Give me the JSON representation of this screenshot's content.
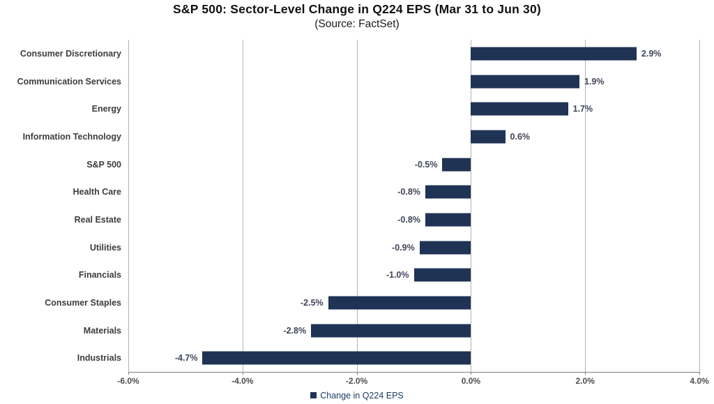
{
  "title": "S&P 500: Sector-Level Change in Q224 EPS (Mar 31 to Jun 30)",
  "subtitle": "(Source: FactSet)",
  "colors": {
    "bar": "#1f3355",
    "grid": "#b3b3b3",
    "axis": "#7f7f7f",
    "category_label": "#3d3d3d",
    "value_label": "#41445a",
    "legend_text": "#17375e"
  },
  "legend": {
    "label": "Change in Q224 EPS",
    "position": "bottom"
  },
  "chart_data": {
    "type": "bar",
    "orientation": "horizontal",
    "title": "S&P 500: Sector-Level Change in Q224 EPS (Mar 31 to Jun 30)",
    "subtitle": "(Source: FactSet)",
    "categories": [
      "Consumer Discretionary",
      "Communication Services",
      "Energy",
      "Information Technology",
      "S&P 500",
      "Health Care",
      "Real Estate",
      "Utilities",
      "Financials",
      "Consumer Staples",
      "Materials",
      "Industrials"
    ],
    "values": [
      2.9,
      1.9,
      1.7,
      0.6,
      -0.5,
      -0.8,
      -0.8,
      -0.9,
      -1.0,
      -2.5,
      -2.8,
      -4.7
    ],
    "value_labels": [
      "2.9%",
      "1.9%",
      "1.7%",
      "0.6%",
      "-0.5%",
      "-0.8%",
      "-0.8%",
      "-0.9%",
      "-1.0%",
      "-2.5%",
      "-2.8%",
      "-4.7%"
    ],
    "series_name": "Change in Q224 EPS",
    "xlabel": "",
    "ylabel": "",
    "xlim": [
      -6.0,
      4.0
    ],
    "x_tick_values": [
      -6.0,
      -4.0,
      -2.0,
      0.0,
      2.0,
      4.0
    ],
    "x_tick_labels": [
      "-6.0%",
      "-4.0%",
      "-2.0%",
      "0.0%",
      "2.0%",
      "4.0%"
    ],
    "grid": true,
    "legend_position": "bottom"
  }
}
